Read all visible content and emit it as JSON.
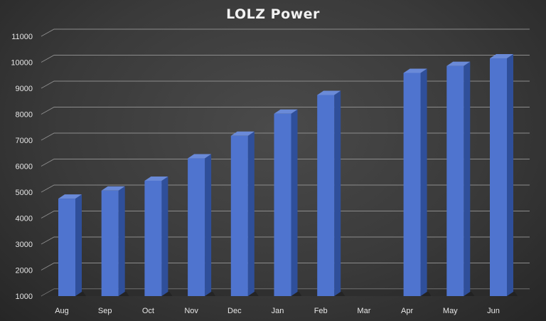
{
  "chart_data": {
    "type": "bar",
    "title": "LOLZ Power",
    "categories": [
      "Aug",
      "Sep",
      "Oct",
      "Nov",
      "Dec",
      "Jan",
      "Feb",
      "Mar",
      "Apr",
      "May",
      "Jun"
    ],
    "values": [
      4750,
      5060,
      5440,
      6300,
      7170,
      8020,
      8740,
      null,
      9590,
      9860,
      10150
    ],
    "ylim": [
      1000,
      11000
    ],
    "yticks": [
      1000,
      2000,
      3000,
      4000,
      5000,
      6000,
      7000,
      8000,
      9000,
      10000,
      11000
    ],
    "xlabel": "",
    "ylabel": "",
    "grid": true,
    "legend": "none",
    "style": "3d-column",
    "colors": {
      "bar_front": "#4f74cf",
      "bar_side": "#2f4f9a",
      "bar_top": "#6a8ad8",
      "gridline": "#8c8c8c",
      "text": "#e6e6e6"
    }
  }
}
